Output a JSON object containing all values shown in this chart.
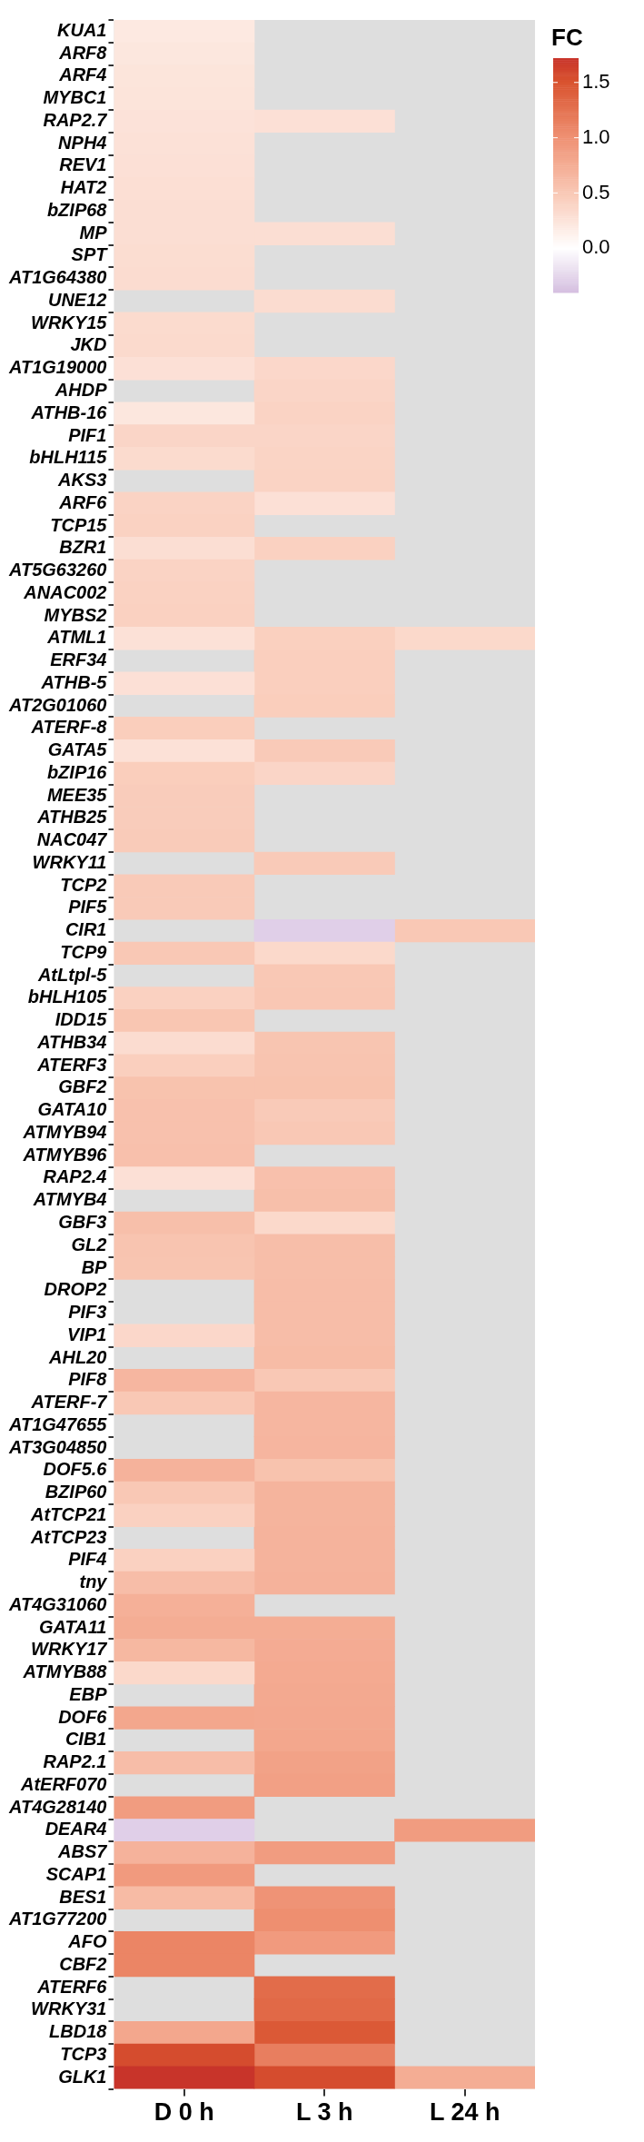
{
  "chart_data": {
    "type": "heatmap",
    "clabel": "FC",
    "categories": [
      "D 0 h",
      "L 3 h",
      "L 24 h"
    ],
    "y_categories": [
      "KUA1",
      "ARF8",
      "ARF4",
      "MYBC1",
      "RAP2.7",
      "NPH4",
      "REV1",
      "HAT2",
      "bZIP68",
      "MP",
      "SPT",
      "AT1G64380",
      "UNE12",
      "WRKY15",
      "JKD",
      "AT1G19000",
      "AHDP",
      "ATHB-16",
      "PIF1",
      "bHLH115",
      "AKS3",
      "ARF6",
      "TCP15",
      "BZR1",
      "AT5G63260",
      "ANAC002",
      "MYBS2",
      "ATML1",
      "ERF34",
      "ATHB-5",
      "AT2G01060",
      "ATERF-8",
      "GATA5",
      "bZIP16",
      "MEE35",
      "ATHB25",
      "NAC047",
      "WRKY11",
      "TCP2",
      "PIF5",
      "CIR1",
      "TCP9",
      "AtLtpl-5",
      "bHLH105",
      "IDD15",
      "ATHB34",
      "ATERF3",
      "GBF2",
      "GATA10",
      "ATMYB94",
      "ATMYB96",
      "RAP2.4",
      "ATMYB4",
      "GBF3",
      "GL2",
      "BP",
      "DROP2",
      "PIF3",
      "VIP1",
      "AHL20",
      "PIF8",
      "ATERF-7",
      "AT1G47655",
      "AT3G04850",
      "DOF5.6",
      "BZIP60",
      "AtTCP21",
      "AtTCP23",
      "PIF4",
      "tny",
      "AT4G31060",
      "GATA11",
      "WRKY17",
      "ATMYB88",
      "EBP",
      "DOF6",
      "CIB1",
      "RAP2.1",
      "AtERF070",
      "AT4G28140",
      "DEAR4",
      "ABS7",
      "SCAP1",
      "BES1",
      "AT1G77200",
      "AFO",
      "CBF2",
      "ATERF6",
      "WRKY31",
      "LBD18",
      "TCP3",
      "GLK1"
    ],
    "cells": [
      [
        0.2,
        null,
        null
      ],
      [
        0.22,
        null,
        null
      ],
      [
        0.24,
        null,
        null
      ],
      [
        0.25,
        null,
        null
      ],
      [
        0.26,
        0.28,
        null
      ],
      [
        0.27,
        null,
        null
      ],
      [
        0.28,
        null,
        null
      ],
      [
        0.29,
        null,
        null
      ],
      [
        0.3,
        null,
        null
      ],
      [
        0.3,
        0.3,
        null
      ],
      [
        0.31,
        null,
        null
      ],
      [
        0.32,
        null,
        null
      ],
      [
        null,
        0.32,
        null
      ],
      [
        0.33,
        null,
        null
      ],
      [
        0.34,
        null,
        null
      ],
      [
        0.28,
        0.36,
        null
      ],
      [
        null,
        0.38,
        null
      ],
      [
        0.22,
        0.4,
        null
      ],
      [
        0.38,
        0.38,
        null
      ],
      [
        0.33,
        0.39,
        null
      ],
      [
        null,
        0.4,
        null
      ],
      [
        0.4,
        0.28,
        null
      ],
      [
        0.41,
        null,
        null
      ],
      [
        0.3,
        0.42,
        null
      ],
      [
        0.4,
        null,
        null
      ],
      [
        0.41,
        null,
        null
      ],
      [
        0.42,
        null,
        null
      ],
      [
        0.27,
        0.43,
        0.35
      ],
      [
        null,
        0.44,
        null
      ],
      [
        0.28,
        0.44,
        null
      ],
      [
        null,
        0.45,
        null
      ],
      [
        0.45,
        null,
        null
      ],
      [
        0.27,
        0.48,
        null
      ],
      [
        0.45,
        0.38,
        null
      ],
      [
        0.46,
        null,
        null
      ],
      [
        0.46,
        null,
        null
      ],
      [
        0.47,
        null,
        null
      ],
      [
        null,
        0.48,
        null
      ],
      [
        0.48,
        null,
        null
      ],
      [
        0.48,
        null,
        null
      ],
      [
        null,
        -0.3,
        0.5
      ],
      [
        0.5,
        0.35,
        null
      ],
      [
        null,
        0.5,
        null
      ],
      [
        0.42,
        0.51,
        null
      ],
      [
        0.52,
        null,
        null
      ],
      [
        0.32,
        0.53,
        null
      ],
      [
        0.44,
        0.54,
        null
      ],
      [
        0.55,
        0.55,
        null
      ],
      [
        0.56,
        0.48,
        null
      ],
      [
        0.56,
        0.5,
        null
      ],
      [
        0.57,
        null,
        null
      ],
      [
        0.28,
        0.57,
        null
      ],
      [
        null,
        0.58,
        null
      ],
      [
        0.58,
        0.35,
        null
      ],
      [
        0.54,
        0.59,
        null
      ],
      [
        0.53,
        0.59,
        null
      ],
      [
        null,
        0.6,
        null
      ],
      [
        null,
        0.6,
        null
      ],
      [
        0.36,
        0.6,
        null
      ],
      [
        null,
        0.61,
        null
      ],
      [
        0.66,
        0.5,
        null
      ],
      [
        0.5,
        0.66,
        null
      ],
      [
        null,
        0.66,
        null
      ],
      [
        null,
        0.67,
        null
      ],
      [
        0.7,
        0.55,
        null
      ],
      [
        0.5,
        0.68,
        null
      ],
      [
        0.42,
        0.68,
        null
      ],
      [
        null,
        0.69,
        null
      ],
      [
        0.42,
        0.69,
        null
      ],
      [
        0.6,
        0.7,
        null
      ],
      [
        0.72,
        null,
        null
      ],
      [
        0.75,
        0.75,
        null
      ],
      [
        0.65,
        0.76,
        null
      ],
      [
        0.35,
        0.77,
        null
      ],
      [
        null,
        0.78,
        null
      ],
      [
        0.8,
        0.79,
        null
      ],
      [
        null,
        0.8,
        null
      ],
      [
        0.6,
        0.85,
        null
      ],
      [
        null,
        0.86,
        null
      ],
      [
        0.9,
        null,
        null
      ],
      [
        -0.3,
        null,
        0.9
      ],
      [
        0.7,
        0.9,
        null
      ],
      [
        0.92,
        null,
        null
      ],
      [
        0.62,
        0.98,
        null
      ],
      [
        null,
        1.02,
        null
      ],
      [
        1.1,
        0.92,
        null
      ],
      [
        1.1,
        null,
        null
      ],
      [
        null,
        1.3,
        null
      ],
      [
        null,
        1.32,
        null
      ],
      [
        0.8,
        1.45,
        null
      ],
      [
        1.55,
        1.15,
        null
      ],
      [
        1.72,
        1.55,
        0.75
      ]
    ],
    "clim": [
      -0.4,
      1.72
    ],
    "cticks": [
      {
        "value": 0,
        "label": "0.0"
      },
      {
        "value": 0.5,
        "label": "0.5"
      },
      {
        "value": 1,
        "label": "1.0"
      },
      {
        "value": 1.5,
        "label": "1.5"
      }
    ]
  }
}
